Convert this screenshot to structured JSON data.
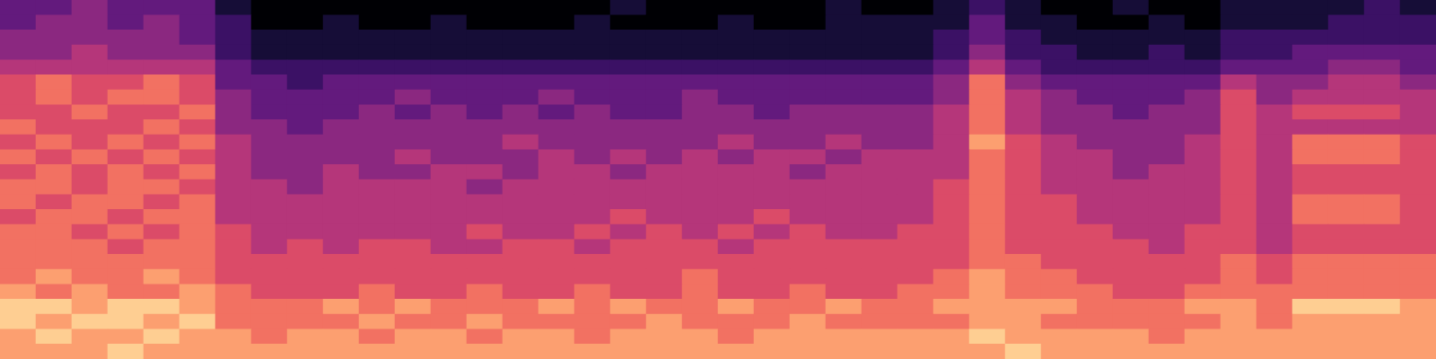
{
  "chart_data": {
    "type": "heatmap",
    "zlim": [
      0,
      10
    ],
    "tick_labels": false,
    "grid": false,
    "cells": [
      [
        3,
        3,
        4,
        3,
        3,
        3,
        1,
        0,
        0,
        0,
        0,
        0,
        0,
        0,
        0,
        0,
        0,
        1,
        0,
        0,
        0,
        0,
        0,
        1,
        0,
        0,
        1,
        2,
        1,
        0,
        0,
        1,
        0,
        0,
        1,
        1,
        1,
        1,
        2,
        1
      ],
      [
        3,
        4,
        4,
        3,
        4,
        3,
        2,
        0,
        0,
        1,
        0,
        0,
        1,
        0,
        0,
        0,
        1,
        0,
        0,
        0,
        1,
        0,
        0,
        1,
        1,
        1,
        1,
        3,
        1,
        1,
        0,
        0,
        1,
        0,
        1,
        1,
        1,
        2,
        2,
        2
      ],
      [
        4,
        4,
        4,
        4,
        4,
        3,
        2,
        1,
        1,
        1,
        1,
        1,
        1,
        1,
        1,
        1,
        1,
        1,
        1,
        1,
        1,
        1,
        1,
        1,
        1,
        1,
        2,
        3,
        2,
        1,
        1,
        1,
        1,
        1,
        2,
        2,
        2,
        2,
        2,
        2
      ],
      [
        4,
        4,
        5,
        4,
        4,
        4,
        2,
        1,
        1,
        1,
        1,
        1,
        1,
        1,
        1,
        1,
        1,
        1,
        1,
        1,
        1,
        1,
        1,
        1,
        1,
        1,
        2,
        4,
        2,
        2,
        1,
        1,
        2,
        1,
        2,
        2,
        3,
        3,
        3,
        3
      ],
      [
        5,
        5,
        5,
        5,
        5,
        5,
        3,
        2,
        2,
        2,
        2,
        2,
        2,
        2,
        2,
        2,
        2,
        2,
        2,
        2,
        2,
        2,
        2,
        2,
        2,
        2,
        3,
        5,
        3,
        2,
        2,
        2,
        2,
        2,
        3,
        3,
        3,
        4,
        4,
        3
      ],
      [
        6,
        7,
        6,
        6,
        7,
        6,
        3,
        3,
        2,
        3,
        3,
        3,
        3,
        3,
        3,
        3,
        3,
        3,
        3,
        3,
        3,
        3,
        3,
        3,
        3,
        3,
        4,
        7,
        4,
        3,
        3,
        3,
        3,
        3,
        5,
        4,
        4,
        5,
        5,
        4
      ],
      [
        6,
        7,
        6,
        7,
        7,
        6,
        4,
        3,
        3,
        3,
        3,
        4,
        3,
        3,
        3,
        4,
        3,
        3,
        3,
        4,
        3,
        3,
        3,
        3,
        3,
        3,
        4,
        7,
        5,
        4,
        3,
        3,
        3,
        4,
        6,
        4,
        5,
        5,
        5,
        5
      ],
      [
        6,
        6,
        7,
        6,
        6,
        7,
        4,
        3,
        3,
        3,
        4,
        3,
        4,
        3,
        4,
        3,
        4,
        3,
        3,
        4,
        4,
        3,
        4,
        4,
        4,
        4,
        5,
        7,
        5,
        4,
        4,
        3,
        4,
        4,
        6,
        5,
        6,
        6,
        6,
        5
      ],
      [
        7,
        6,
        6,
        6,
        7,
        6,
        4,
        4,
        3,
        4,
        4,
        4,
        4,
        4,
        4,
        4,
        4,
        4,
        4,
        4,
        4,
        4,
        4,
        4,
        4,
        4,
        5,
        7,
        5,
        4,
        4,
        4,
        4,
        4,
        6,
        5,
        5,
        5,
        5,
        5
      ],
      [
        6,
        7,
        6,
        7,
        6,
        7,
        5,
        4,
        4,
        4,
        4,
        4,
        4,
        4,
        5,
        4,
        4,
        4,
        4,
        4,
        5,
        4,
        4,
        5,
        4,
        4,
        5,
        8,
        6,
        5,
        4,
        4,
        4,
        5,
        6,
        5,
        7,
        7,
        7,
        6
      ],
      [
        7,
        6,
        7,
        6,
        7,
        6,
        5,
        4,
        4,
        4,
        4,
        5,
        4,
        4,
        4,
        5,
        4,
        5,
        4,
        5,
        4,
        5,
        5,
        4,
        5,
        5,
        5,
        7,
        6,
        5,
        5,
        4,
        4,
        5,
        6,
        5,
        7,
        7,
        7,
        6
      ],
      [
        6,
        7,
        6,
        7,
        6,
        7,
        5,
        4,
        4,
        5,
        4,
        4,
        5,
        5,
        4,
        5,
        5,
        4,
        5,
        5,
        5,
        5,
        4,
        5,
        5,
        5,
        5,
        7,
        6,
        5,
        5,
        4,
        5,
        5,
        6,
        5,
        6,
        6,
        6,
        6
      ],
      [
        7,
        7,
        6,
        7,
        7,
        6,
        5,
        5,
        4,
        5,
        5,
        5,
        5,
        4,
        5,
        5,
        5,
        5,
        5,
        5,
        5,
        5,
        5,
        5,
        5,
        5,
        6,
        7,
        6,
        5,
        5,
        5,
        5,
        5,
        6,
        5,
        6,
        6,
        6,
        6
      ],
      [
        7,
        6,
        7,
        7,
        6,
        7,
        5,
        5,
        5,
        5,
        5,
        5,
        5,
        5,
        5,
        5,
        5,
        5,
        5,
        5,
        5,
        5,
        5,
        5,
        5,
        5,
        6,
        7,
        6,
        6,
        5,
        5,
        5,
        5,
        6,
        5,
        7,
        7,
        7,
        6
      ],
      [
        6,
        7,
        7,
        6,
        7,
        7,
        5,
        5,
        5,
        5,
        5,
        5,
        5,
        5,
        5,
        5,
        5,
        6,
        5,
        5,
        5,
        6,
        5,
        5,
        5,
        5,
        6,
        7,
        6,
        6,
        5,
        5,
        5,
        5,
        6,
        5,
        7,
        7,
        7,
        6
      ],
      [
        7,
        7,
        6,
        7,
        6,
        7,
        6,
        5,
        5,
        5,
        5,
        5,
        5,
        6,
        5,
        5,
        6,
        5,
        6,
        5,
        6,
        5,
        6,
        5,
        5,
        6,
        6,
        7,
        6,
        6,
        6,
        5,
        5,
        6,
        6,
        5,
        6,
        6,
        6,
        6
      ],
      [
        7,
        7,
        7,
        6,
        7,
        7,
        6,
        5,
        6,
        5,
        6,
        6,
        5,
        5,
        6,
        6,
        5,
        6,
        6,
        6,
        5,
        6,
        6,
        6,
        6,
        6,
        6,
        7,
        6,
        6,
        6,
        6,
        5,
        6,
        6,
        5,
        6,
        6,
        6,
        6
      ],
      [
        7,
        7,
        7,
        7,
        7,
        7,
        6,
        6,
        6,
        6,
        6,
        6,
        6,
        6,
        6,
        6,
        6,
        6,
        6,
        6,
        6,
        6,
        6,
        6,
        6,
        6,
        6,
        7,
        7,
        6,
        6,
        6,
        6,
        6,
        7,
        6,
        7,
        7,
        7,
        7
      ],
      [
        7,
        8,
        7,
        7,
        8,
        7,
        6,
        6,
        6,
        6,
        6,
        6,
        6,
        6,
        6,
        6,
        6,
        6,
        6,
        7,
        6,
        6,
        6,
        6,
        6,
        6,
        7,
        8,
        7,
        7,
        6,
        6,
        6,
        6,
        7,
        6,
        7,
        7,
        7,
        7
      ],
      [
        8,
        7,
        8,
        7,
        7,
        8,
        7,
        6,
        6,
        6,
        7,
        6,
        6,
        7,
        6,
        6,
        7,
        6,
        6,
        7,
        6,
        6,
        7,
        6,
        6,
        7,
        7,
        8,
        7,
        7,
        7,
        6,
        6,
        7,
        7,
        7,
        7,
        7,
        7,
        7
      ],
      [
        9,
        9,
        8,
        9,
        9,
        8,
        7,
        7,
        7,
        8,
        7,
        8,
        7,
        7,
        7,
        8,
        7,
        8,
        7,
        7,
        8,
        7,
        7,
        8,
        7,
        7,
        8,
        8,
        8,
        8,
        7,
        7,
        7,
        8,
        8,
        7,
        9,
        9,
        9,
        8
      ],
      [
        9,
        8,
        9,
        9,
        8,
        9,
        7,
        7,
        7,
        7,
        8,
        7,
        7,
        8,
        7,
        7,
        7,
        7,
        8,
        7,
        7,
        7,
        8,
        7,
        7,
        7,
        7,
        8,
        8,
        7,
        7,
        7,
        7,
        7,
        8,
        7,
        8,
        8,
        8,
        8
      ],
      [
        8,
        9,
        8,
        8,
        9,
        8,
        8,
        7,
        8,
        8,
        7,
        8,
        8,
        7,
        8,
        8,
        7,
        8,
        8,
        8,
        7,
        8,
        8,
        8,
        8,
        8,
        8,
        9,
        8,
        8,
        8,
        8,
        7,
        8,
        8,
        8,
        8,
        8,
        8,
        8
      ],
      [
        8,
        8,
        8,
        9,
        8,
        8,
        8,
        8,
        8,
        8,
        8,
        8,
        8,
        8,
        8,
        8,
        8,
        8,
        8,
        8,
        8,
        8,
        8,
        8,
        8,
        8,
        8,
        8,
        9,
        8,
        8,
        8,
        8,
        8,
        8,
        8,
        8,
        8,
        8,
        8
      ]
    ]
  }
}
